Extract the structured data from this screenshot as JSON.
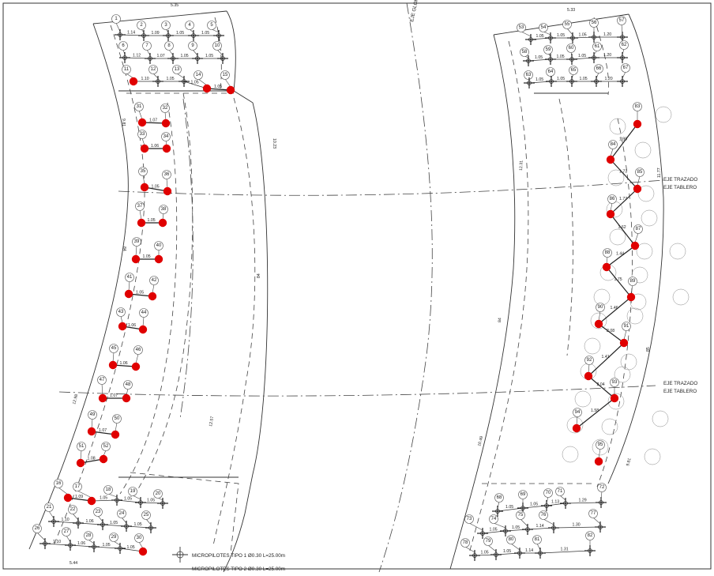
{
  "axis_labels": {
    "eje_glorieta": "EJE GLORIETA",
    "eje_trazado": "EJE TRAZADO",
    "eje_tablero": "EJE TABLERO"
  },
  "dimensions": {
    "top_left_width": "5.35",
    "top_right_width": "5.33",
    "bottom_left_width": "5.44",
    "radius_left_outer_top": "9.81",
    "radius_left_inner_top": "10.23",
    "radius_left_outer_bottom": "12.98",
    "radius_left_inner_bottom": "12.57",
    "radius_right_outer_top": "12.31",
    "radius_right_inner_top": "11.77",
    "radius_right_outer_bottom": "10.49",
    "radius_right_inner_bottom": "9.81",
    "slab_thickness_a": "84",
    "slab_thickness_b": "84",
    "slab_thickness_c": "84",
    "slab_thickness_d": "85"
  },
  "legend": {
    "tipo1": "MICROPILOTES TIPO 1 Ø0.30 L=25.00m",
    "tipo2": "MICROPILOTES TIPO 2 Ø0.30 L=25.00m"
  },
  "colors": {
    "line": "#333333",
    "red_pile": "#e00000",
    "background": "#ffffff"
  },
  "red_pile_labels": [
    "11",
    "14",
    "15",
    "31",
    "32",
    "33",
    "34",
    "35",
    "36",
    "37",
    "38",
    "39",
    "40",
    "41",
    "42",
    "43",
    "44",
    "45",
    "46",
    "47",
    "48",
    "49",
    "50",
    "51",
    "52",
    "16",
    "17",
    "30",
    "83",
    "84",
    "85",
    "86",
    "87",
    "88",
    "89",
    "90",
    "91",
    "92",
    "93",
    "94",
    "95"
  ],
  "cross_pile_labels": [
    "1",
    "2",
    "3",
    "4",
    "5",
    "6",
    "7",
    "8",
    "9",
    "10",
    "12",
    "13",
    "18",
    "19",
    "20",
    "21",
    "22",
    "23",
    "24",
    "25",
    "26",
    "27",
    "28",
    "29",
    "53",
    "54",
    "55",
    "56",
    "57",
    "58",
    "59",
    "60",
    "61",
    "62",
    "63",
    "64",
    "65",
    "66",
    "67",
    "68",
    "69",
    "70",
    "71",
    "72",
    "73",
    "74",
    "75",
    "76",
    "77",
    "78",
    "79",
    "80",
    "81",
    "82"
  ],
  "spacing_labels": {
    "s1": "1.14",
    "s2": "1.09",
    "s3": "1.05",
    "s4": "1.05",
    "s5": "1.12",
    "s6": "1.07",
    "s7": "1.05",
    "s8": "1.05",
    "s9": "1.10",
    "s10": "1.05",
    "s11": "1.05",
    "s12": "1.05",
    "p31": "1.07",
    "p33": "1.06",
    "p35": "1.05",
    "p37": "1.05",
    "p39": "1.05",
    "p41": "1.05",
    "p43": "1.06",
    "p45": "1.06",
    "p47": "1.07",
    "p49": "1.07",
    "p51": "1.08",
    "b1": "1.09",
    "b2": "1.05",
    "b3": "1.05",
    "b4": "1.10",
    "b5": "1.06",
    "b6": "1.05",
    "b7": "1.05",
    "b8": "1.10",
    "b9": "1.06",
    "b10": "1.05",
    "b11": "1.05",
    "b12": "1.05",
    "r1": "1.05",
    "r2": "1.05",
    "r3": "1.05",
    "r4": "1.20",
    "r5": "1.05",
    "r6": "1.05",
    "r7": "1.05",
    "r8": "1.20",
    "r9": "1.05",
    "r10": "1.05",
    "r11": "1.05",
    "r12": "1.20",
    "d1": "1.99",
    "d2": "1.73",
    "d3": "1.77",
    "d4": "1.62",
    "d5": "1.44",
    "d6": "1.75",
    "d7": "1.46",
    "d8": "2.08",
    "d9": "1.41",
    "d10": "2.04",
    "d11": "1.58",
    "rb1": "1.05",
    "rb2": "1.05",
    "rb3": "1.13",
    "rb4": "1.29",
    "rb5": "1.05",
    "rb6": "1.05",
    "rb7": "1.14",
    "rb8": "1.30",
    "rb9": "1.05",
    "rb10": "1.05",
    "rb11": "1.14",
    "rb12": "1.31"
  }
}
